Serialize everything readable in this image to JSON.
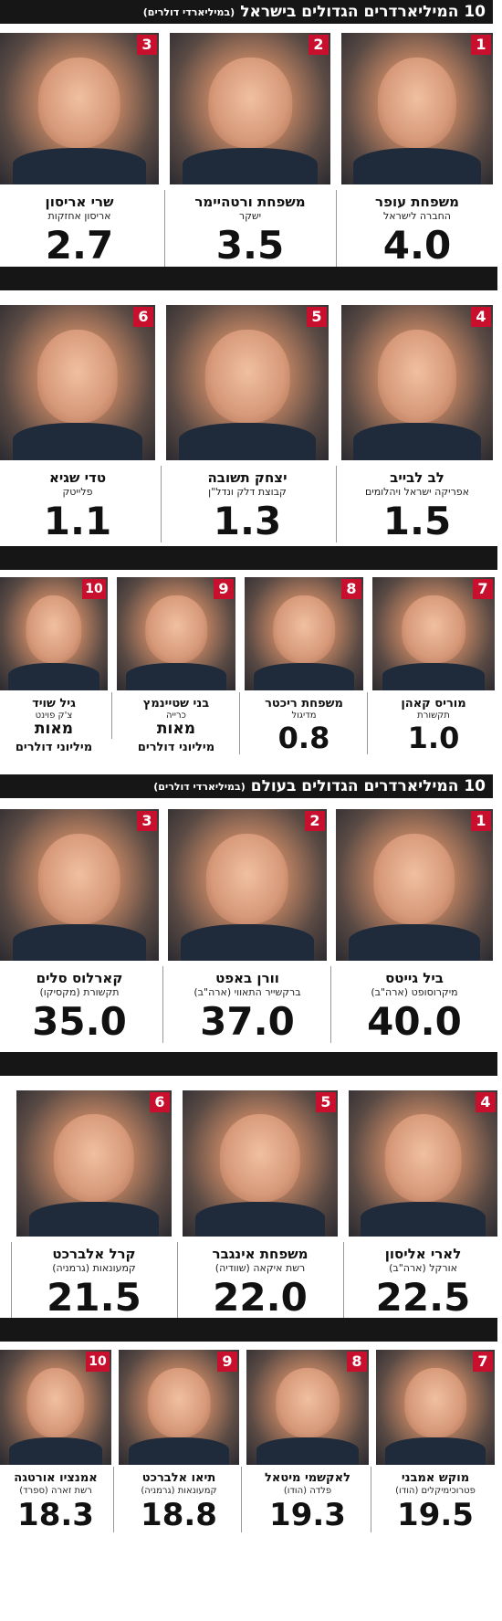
{
  "israel": {
    "title": "10 המיליארדרים הגדולים בישראל",
    "subtitle": "(במיליארדי דולרים)",
    "people": [
      {
        "rank": "1",
        "name": "משפחת עופר",
        "company": "החברה לישראל",
        "value": "4.0"
      },
      {
        "rank": "2",
        "name": "משפחת ורטהיימר",
        "company": "ישקר",
        "value": "3.5"
      },
      {
        "rank": "3",
        "name": "שרי אריסון",
        "company": "אריסון אחזקות",
        "value": "2.7"
      },
      {
        "rank": "4",
        "name": "לב לבייב",
        "company": "אפריקה ישראל ויהלומים",
        "value": "1.5"
      },
      {
        "rank": "5",
        "name": "יצחק תשובה",
        "company": "קבוצת דלק ונדל\"ן",
        "value": "1.3"
      },
      {
        "rank": "6",
        "name": "טדי שגיא",
        "company": "פלייטק",
        "value": "1.1"
      },
      {
        "rank": "7",
        "name": "מוריס קאהן",
        "company": "תקשורת",
        "value": "1.0"
      },
      {
        "rank": "8",
        "name": "משפחת ריכטר",
        "company": "מדיגול",
        "value": "0.8"
      },
      {
        "rank": "9",
        "name": "בני שטיינמץ",
        "company": "כרייה",
        "value": "מאות",
        "value2": "מיליוני דולרים"
      },
      {
        "rank": "10",
        "name": "גיל שויד",
        "company": "צ'ק פוינט",
        "value": "מאות",
        "value2": "מיליוני דולרים"
      }
    ]
  },
  "world": {
    "title": "10 המיליארדרים הגדולים בעולם",
    "subtitle": "(במיליארדי דולרים)",
    "people": [
      {
        "rank": "1",
        "name": "ביל גייטס",
        "company": "מיקרוסופט (ארה\"ב)",
        "value": "40.0"
      },
      {
        "rank": "2",
        "name": "וורן באפט",
        "company": "ברקשייר התאווי (ארה\"ב)",
        "value": "37.0"
      },
      {
        "rank": "3",
        "name": "קארלוס סלים",
        "company": "תקשורת (מקסיקו)",
        "value": "35.0"
      },
      {
        "rank": "4",
        "name": "לארי אליסון",
        "company": "אורקל (ארה\"ב)",
        "value": "22.5"
      },
      {
        "rank": "5",
        "name": "משפחת אינגבר",
        "company": "רשת איקאה (שוודיה)",
        "value": "22.0"
      },
      {
        "rank": "6",
        "name": "קרל אלברכט",
        "company": "קמעונאות (גרמניה)",
        "value": "21.5"
      },
      {
        "rank": "7",
        "name": "מוקש אמבני",
        "company": "פטרוכימיקלים (הודו)",
        "value": "19.5"
      },
      {
        "rank": "8",
        "name": "לאקשמי מיטאל",
        "company": "פלדה (הודו)",
        "value": "19.3"
      },
      {
        "rank": "9",
        "name": "תיאו אלברכט",
        "company": "קמעונאות (גרמניה)",
        "value": "18.8"
      },
      {
        "rank": "10",
        "name": "אמנציו אורטגה",
        "company": "רשת זארה (ספרד)",
        "value": "18.3"
      }
    ]
  },
  "accent_color": "#c8102e",
  "bar_color": "#161616"
}
